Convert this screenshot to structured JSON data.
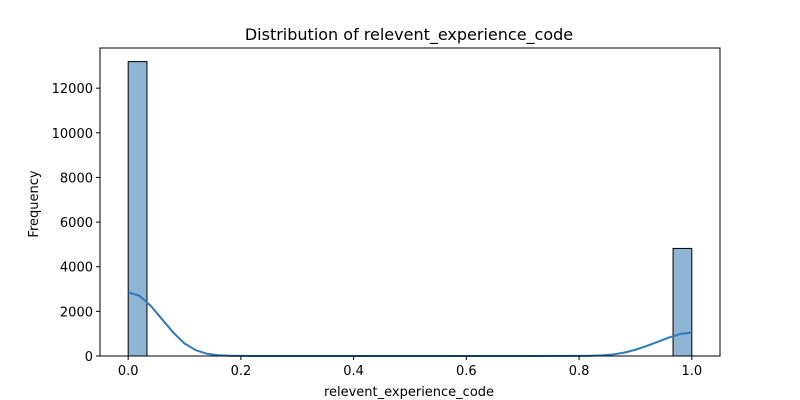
{
  "chart_data": {
    "type": "bar",
    "title": "Distribution of relevent_experience_code",
    "xlabel": "relevent_experience_code",
    "ylabel": "Frequency",
    "xlim": [
      -0.05,
      1.05
    ],
    "ylim": [
      0,
      13800
    ],
    "x_ticks": [
      0.0,
      0.2,
      0.4,
      0.6,
      0.8,
      1.0
    ],
    "x_tick_labels": [
      "0.0",
      "0.2",
      "0.4",
      "0.6",
      "0.8",
      "1.0"
    ],
    "y_ticks": [
      0,
      2000,
      4000,
      6000,
      8000,
      10000,
      12000
    ],
    "y_tick_labels": [
      "0",
      "2000",
      "4000",
      "6000",
      "8000",
      "10000",
      "12000"
    ],
    "bins": [
      {
        "x0": 0.0,
        "x1": 0.0333,
        "count": 13190
      },
      {
        "x0": 0.9667,
        "x1": 1.0,
        "count": 4820
      }
    ],
    "kde": {
      "name": "kde",
      "x": [
        0.0,
        0.02,
        0.04,
        0.06,
        0.08,
        0.1,
        0.12,
        0.14,
        0.16,
        0.18,
        0.2,
        0.25,
        0.3,
        0.4,
        0.5,
        0.6,
        0.7,
        0.8,
        0.82,
        0.84,
        0.86,
        0.88,
        0.9,
        0.92,
        0.94,
        0.96,
        0.98,
        1.0
      ],
      "y": [
        2850,
        2700,
        2250,
        1650,
        1050,
        560,
        260,
        100,
        35,
        10,
        3,
        0,
        0,
        0,
        0,
        0,
        0,
        3,
        10,
        28,
        70,
        150,
        280,
        450,
        640,
        830,
        990,
        1050
      ]
    },
    "colors": {
      "bar_fill": "#8fb5d4",
      "bar_edge": "#000000",
      "kde_line": "#2e7bb8"
    },
    "grid": false,
    "legend": "none"
  }
}
